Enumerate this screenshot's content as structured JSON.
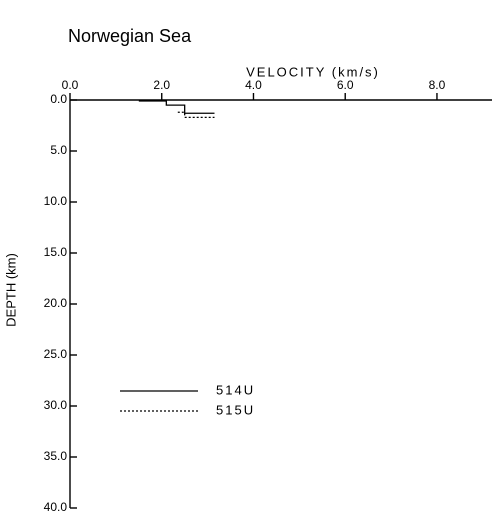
{
  "chart_data": {
    "type": "line",
    "title": "Norwegian Sea",
    "x_label": "VELOCITY (km/s)",
    "y_label": "DEPTH (km)",
    "xlim": [
      0,
      9.2
    ],
    "ylim": [
      0,
      40
    ],
    "y_inverted": true,
    "x_axis_position": "top",
    "xticks": [
      {
        "value": 0,
        "label": "0.0"
      },
      {
        "value": 2,
        "label": "2.0"
      },
      {
        "value": 4,
        "label": "4.0"
      },
      {
        "value": 6,
        "label": "6.0"
      },
      {
        "value": 8,
        "label": "8.0"
      }
    ],
    "yticks": [
      {
        "value": 0,
        "label": "0.0"
      },
      {
        "value": 5,
        "label": "5.0"
      },
      {
        "value": 10,
        "label": "10.0"
      },
      {
        "value": 15,
        "label": "15.0"
      },
      {
        "value": 20,
        "label": "20.0"
      },
      {
        "value": 25,
        "label": "25.0"
      },
      {
        "value": 30,
        "label": "30.0"
      },
      {
        "value": 35,
        "label": "35.0"
      },
      {
        "value": 40,
        "label": "40.0"
      }
    ],
    "legend": "lower left",
    "series": [
      {
        "name": "514U",
        "color": "#000000",
        "dash": "solid",
        "x": [
          1.5,
          2.1,
          2.1,
          2.5,
          2.5,
          3.15
        ],
        "values": [
          0.1,
          0.1,
          0.5,
          0.5,
          1.3,
          1.3
        ]
      },
      {
        "name": "515U",
        "color": "#000000",
        "dash": "dotted",
        "x": [
          2.35,
          2.5,
          2.5,
          3.15
        ],
        "values": [
          1.2,
          1.2,
          1.7,
          1.7
        ]
      }
    ]
  }
}
